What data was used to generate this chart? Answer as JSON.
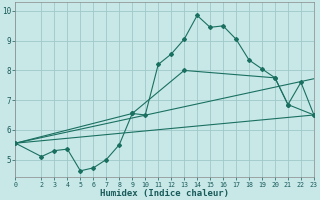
{
  "xlabel": "Humidex (Indice chaleur)",
  "xlim": [
    0,
    23
  ],
  "ylim": [
    4.4,
    10.3
  ],
  "yticks": [
    5,
    6,
    7,
    8,
    9,
    10
  ],
  "xticks": [
    0,
    2,
    3,
    4,
    5,
    6,
    7,
    8,
    9,
    10,
    11,
    12,
    13,
    14,
    15,
    16,
    17,
    18,
    19,
    20,
    21,
    22,
    23
  ],
  "bg_color": "#c8e8e8",
  "grid_color": "#a0c8c8",
  "line_color": "#1a7060",
  "line1_x": [
    0,
    2,
    3,
    4,
    5,
    6,
    7,
    8,
    9,
    10,
    11,
    12,
    13,
    14,
    15,
    16,
    17,
    18,
    19,
    20,
    21,
    22,
    23
  ],
  "line1_y": [
    5.55,
    5.1,
    5.3,
    5.35,
    4.62,
    4.72,
    5.0,
    5.5,
    6.55,
    6.5,
    8.2,
    8.55,
    9.05,
    9.85,
    9.45,
    9.5,
    9.05,
    8.35,
    8.05,
    7.75,
    6.85,
    7.6,
    6.5
  ],
  "line2_x": [
    0,
    9,
    13,
    20,
    21,
    23
  ],
  "line2_y": [
    5.55,
    6.55,
    8.0,
    7.75,
    6.85,
    6.5
  ],
  "line3_x": [
    0,
    23
  ],
  "line3_y": [
    5.55,
    6.5
  ],
  "line4_x": [
    0,
    23
  ],
  "line4_y": [
    5.55,
    7.72
  ]
}
